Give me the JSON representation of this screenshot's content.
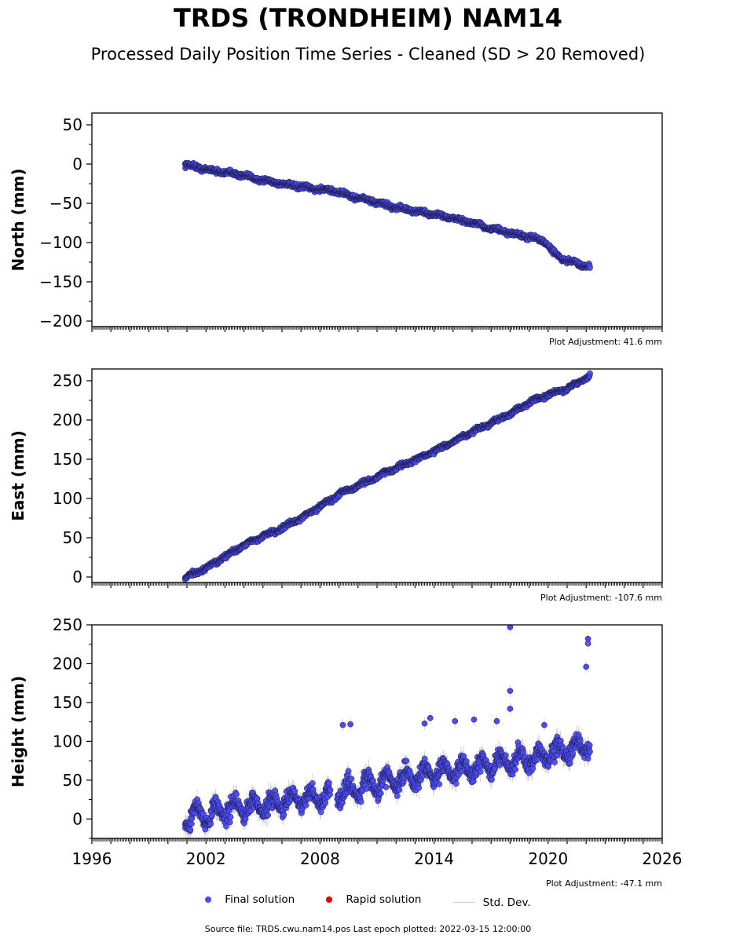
{
  "title": "TRDS (TRONDHEIM) NAM14",
  "subtitle": "Processed Daily Position Time Series - Cleaned (SD > 20 Removed)",
  "source_text": "Source file: TRDS.cwu.nam14.pos  Last epoch plotted: 2022-03-15 12:00:00",
  "legend": {
    "final": "Final solution",
    "rapid": "Rapid solution",
    "sd": "Std. Dev."
  },
  "colors": {
    "final": "#4b4bf0",
    "final_edge": "#1a1a40",
    "rapid": "#e00000",
    "sd": "#cccccc"
  },
  "chart_data": [
    {
      "type": "scatter",
      "panel": "north",
      "ylabel": "North (mm)",
      "xlim": [
        1996,
        2026
      ],
      "ylim": [
        -207,
        65
      ],
      "yticks": [
        -200,
        -150,
        -100,
        -50,
        0,
        50
      ],
      "adjustment_label": "Plot Adjustment: 41.6 mm",
      "series": [
        {
          "values_x": [
            2000.9,
            2001.5,
            2002.5,
            2003.5,
            2004.5,
            2005.5,
            2006.5,
            2007.5,
            2008.5,
            2009.0,
            2010.0,
            2011.0,
            2012.0,
            2013.0,
            2014.0,
            2015.0,
            2016.0,
            2017.0,
            2018.0,
            2019.0,
            2019.8,
            2020.3,
            2020.8,
            2021.5,
            2022.2
          ],
          "values_y": [
            0,
            -4,
            -9,
            -12,
            -18,
            -23,
            -27,
            -31,
            -33,
            -36,
            -43,
            -49,
            -55,
            -60,
            -64,
            -69,
            -75,
            -82,
            -88,
            -93,
            -98,
            -113,
            -122,
            -126,
            -131
          ]
        }
      ]
    },
    {
      "type": "scatter",
      "panel": "east",
      "ylabel": "East (mm)",
      "xlim": [
        1996,
        2026
      ],
      "ylim": [
        -7,
        265
      ],
      "yticks": [
        0,
        50,
        100,
        150,
        200,
        250
      ],
      "adjustment_label": "Plot Adjustment: -107.6 mm",
      "series": [
        {
          "values_x": [
            2000.9,
            2001.5,
            2002.0,
            2002.5,
            2003.0,
            2003.5,
            2004.0,
            2005.0,
            2006.0,
            2007.0,
            2008.0,
            2008.6,
            2009.0,
            2010.0,
            2011.0,
            2012.0,
            2013.0,
            2014.0,
            2015.0,
            2016.0,
            2017.0,
            2018.0,
            2019.0,
            2020.0,
            2021.0,
            2022.2
          ],
          "values_y": [
            0,
            5,
            12,
            18,
            26,
            33,
            41,
            52,
            62,
            75,
            90,
            98,
            106,
            116,
            128,
            139,
            149,
            160,
            172,
            185,
            196,
            208,
            222,
            232,
            240,
            256
          ]
        }
      ]
    },
    {
      "type": "scatter",
      "panel": "height",
      "ylabel": "Height (mm)",
      "xlim": [
        1996,
        2026
      ],
      "ylim": [
        -25,
        250
      ],
      "yticks": [
        0,
        50,
        100,
        150,
        200,
        250
      ],
      "xticks": [
        1996,
        2002,
        2008,
        2014,
        2020,
        2026
      ],
      "adjustment_label": "Plot Adjustment: -47.1 mm",
      "series": [
        {
          "values_x": [
            2000.9,
            2001.5,
            2002.0,
            2003.0,
            2004.0,
            2005.0,
            2006.0,
            2007.0,
            2008.0,
            2008.9,
            2010.0,
            2011.0,
            2012.0,
            2013.0,
            2014.0,
            2015.0,
            2016.0,
            2017.0,
            2018.0,
            2019.0,
            2020.0,
            2021.0,
            2022.2
          ],
          "values_y": [
            2,
            5,
            6,
            12,
            15,
            18,
            22,
            25,
            28,
            32,
            40,
            45,
            50,
            55,
            60,
            63,
            66,
            70,
            74,
            78,
            82,
            88,
            95
          ],
          "outliers_x": [
            2018.0,
            2018.0,
            2022.0,
            2022.1,
            2022.1,
            2009.2,
            2009.6,
            2013.5,
            2013.8,
            2015.1,
            2016.1,
            2017.3,
            2018.0,
            2019.8
          ],
          "outliers_y": [
            247,
            165,
            196,
            226,
            232,
            121,
            122,
            123,
            130,
            126,
            128,
            126,
            142,
            121
          ]
        }
      ]
    }
  ]
}
